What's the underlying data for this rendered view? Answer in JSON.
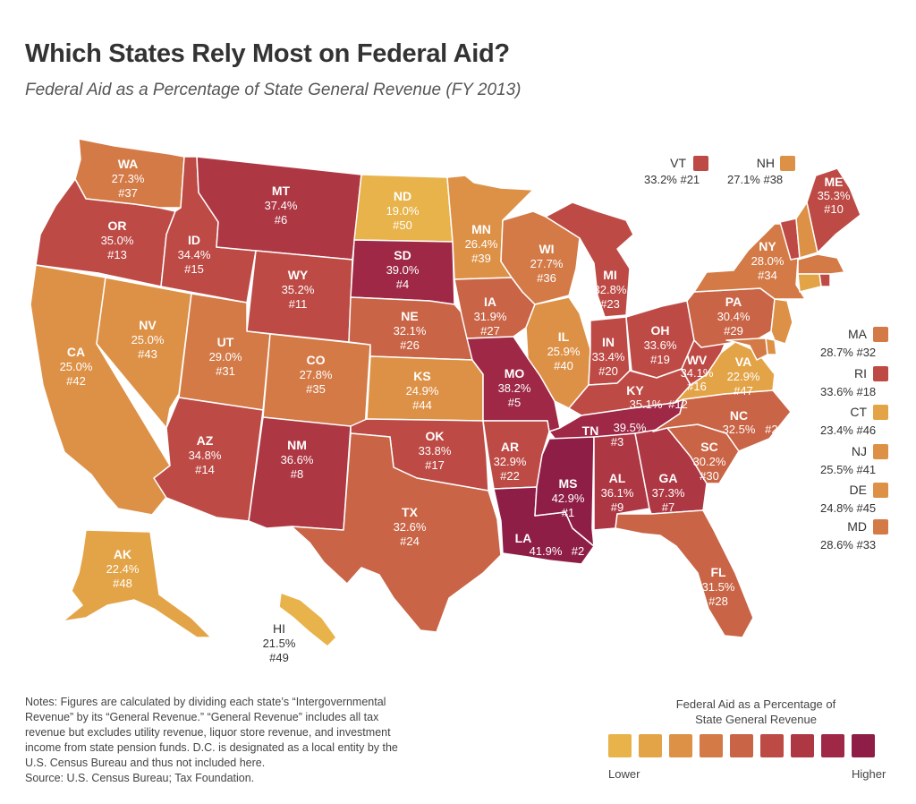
{
  "title": "Which States Rely Most on Federal Aid?",
  "subtitle": "Federal Aid as a Percentage of State General Revenue (FY 2013)",
  "colors": {
    "c1": "#E8B34B",
    "c2": "#E3A447",
    "c3": "#DD9147",
    "c4": "#D37A47",
    "c5": "#C96446",
    "c6": "#BD4A45",
    "c7": "#AE3744",
    "c8": "#9E2846",
    "c9": "#8F1E46"
  },
  "states": {
    "WA": {
      "name": "WA",
      "value": "27.3%",
      "rank": "#37"
    },
    "OR": {
      "name": "OR",
      "value": "35.0%",
      "rank": "#13"
    },
    "CA": {
      "name": "CA",
      "value": "25.0%",
      "rank": "#42"
    },
    "NV": {
      "name": "NV",
      "value": "25.0%",
      "rank": "#43"
    },
    "ID": {
      "name": "ID",
      "value": "34.4%",
      "rank": "#15"
    },
    "MT": {
      "name": "MT",
      "value": "37.4%",
      "rank": "#6"
    },
    "WY": {
      "name": "WY",
      "value": "35.2%",
      "rank": "#11"
    },
    "UT": {
      "name": "UT",
      "value": "29.0%",
      "rank": "#31"
    },
    "AZ": {
      "name": "AZ",
      "value": "34.8%",
      "rank": "#14"
    },
    "CO": {
      "name": "CO",
      "value": "27.8%",
      "rank": "#35"
    },
    "NM": {
      "name": "NM",
      "value": "36.6%",
      "rank": "#8"
    },
    "ND": {
      "name": "ND",
      "value": "19.0%",
      "rank": "#50"
    },
    "SD": {
      "name": "SD",
      "value": "39.0%",
      "rank": "#4"
    },
    "NE": {
      "name": "NE",
      "value": "32.1%",
      "rank": "#26"
    },
    "KS": {
      "name": "KS",
      "value": "24.9%",
      "rank": "#44"
    },
    "OK": {
      "name": "OK",
      "value": "33.8%",
      "rank": "#17"
    },
    "TX": {
      "name": "TX",
      "value": "32.6%",
      "rank": "#24"
    },
    "MN": {
      "name": "MN",
      "value": "26.4%",
      "rank": "#39"
    },
    "IA": {
      "name": "IA",
      "value": "31.9%",
      "rank": "#27"
    },
    "MO": {
      "name": "MO",
      "value": "38.2%",
      "rank": "#5"
    },
    "AR": {
      "name": "AR",
      "value": "32.9%",
      "rank": "#22"
    },
    "LA": {
      "name": "LA",
      "value": "41.9%",
      "rank": "#2"
    },
    "WI": {
      "name": "WI",
      "value": "27.7%",
      "rank": "#36"
    },
    "IL": {
      "name": "IL",
      "value": "25.9%",
      "rank": "#40"
    },
    "MI": {
      "name": "MI",
      "value": "32.8%",
      "rank": "#23"
    },
    "IN": {
      "name": "IN",
      "value": "33.4%",
      "rank": "#20"
    },
    "OH": {
      "name": "OH",
      "value": "33.6%",
      "rank": "#19"
    },
    "KY": {
      "name": "KY",
      "value": "35.1%",
      "rank": "#12"
    },
    "TN": {
      "name": "TN",
      "value": "39.5%",
      "rank": "#3"
    },
    "MS": {
      "name": "MS",
      "value": "42.9%",
      "rank": "#1"
    },
    "AL": {
      "name": "AL",
      "value": "36.1%",
      "rank": "#9"
    },
    "GA": {
      "name": "GA",
      "value": "37.3%",
      "rank": "#7"
    },
    "FL": {
      "name": "FL",
      "value": "31.5%",
      "rank": "#28"
    },
    "SC": {
      "name": "SC",
      "value": "30.2%",
      "rank": "#30"
    },
    "NC": {
      "name": "NC",
      "value": "32.5%",
      "rank": "#25"
    },
    "VA": {
      "name": "VA",
      "value": "22.9%",
      "rank": "#47"
    },
    "WV": {
      "name": "WV",
      "value": "34.1%",
      "rank": "#16"
    },
    "PA": {
      "name": "PA",
      "value": "30.4%",
      "rank": "#29"
    },
    "NY": {
      "name": "NY",
      "value": "28.0%",
      "rank": "#34"
    },
    "ME": {
      "name": "ME",
      "value": "35.3%",
      "rank": "#10"
    },
    "AK": {
      "name": "AK",
      "value": "22.4%",
      "rank": "#48"
    },
    "HI": {
      "name": "HI",
      "value": "21.5%",
      "rank": "#49"
    }
  },
  "side_states": {
    "VT": {
      "name": "VT",
      "text": "33.2% #21"
    },
    "NH": {
      "name": "NH",
      "text": "27.1% #38"
    },
    "MA": {
      "name": "MA",
      "text": "28.7% #32"
    },
    "RI": {
      "name": "RI",
      "text": "33.6% #18"
    },
    "CT": {
      "name": "CT",
      "text": "23.4% #46"
    },
    "NJ": {
      "name": "NJ",
      "text": "25.5% #41"
    },
    "DE": {
      "name": "DE",
      "text": "24.8% #45"
    },
    "MD": {
      "name": "MD",
      "text": "28.6% #33"
    }
  },
  "notes": {
    "text": "Notes: Figures are calculated by dividing each state’s “Intergovernmental Revenue” by its “General Revenue.” “General Revenue” includes all tax revenue but excludes utility revenue, liquor store revenue, and investment income from state pension funds. D.C. is designated as a local entity by the U.S. Census Bureau and thus not included here.",
    "source": "Source: U.S. Census Bureau; Tax Foundation."
  },
  "legend": {
    "title_line1": "Federal Aid as a Percentage of",
    "title_line2": "State General Revenue",
    "low": "Lower",
    "high": "Higher",
    "swatches": [
      "#E8B34B",
      "#E3A447",
      "#DD9147",
      "#D37A47",
      "#C96446",
      "#BD4A45",
      "#AE3744",
      "#9E2846",
      "#8F1E46"
    ]
  }
}
